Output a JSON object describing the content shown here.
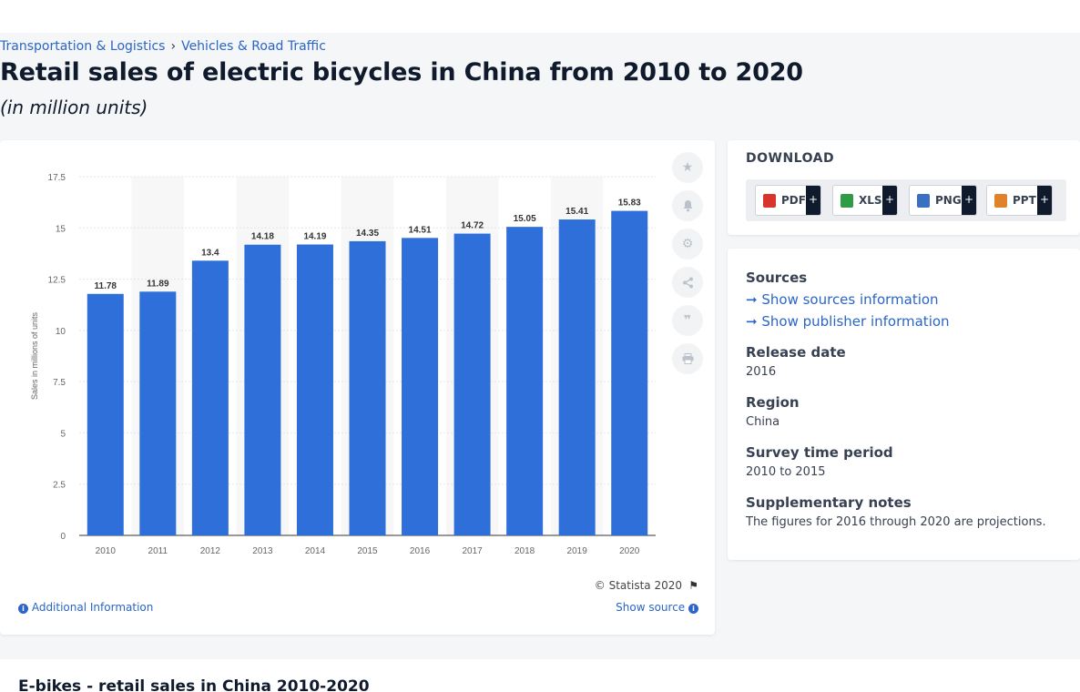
{
  "breadcrumb": [
    "Transportation & Logistics",
    "Vehicles & Road Traffic"
  ],
  "breadcrumb_sep": "›",
  "title": "Retail sales of electric bicycles in China from 2010 to 2020",
  "subtitle": "(in million units)",
  "chart_data": {
    "type": "bar",
    "categories": [
      "2010",
      "2011",
      "2012",
      "2013",
      "2014",
      "2015",
      "2016",
      "2017",
      "2018",
      "2019",
      "2020"
    ],
    "values": [
      11.78,
      11.89,
      13.4,
      14.18,
      14.19,
      14.35,
      14.51,
      14.72,
      15.05,
      15.41,
      15.83
    ],
    "value_labels": [
      "11.78",
      "11.89",
      "13.4",
      "14.18",
      "14.19",
      "14.35",
      "14.51",
      "14.72",
      "15.05",
      "15.41",
      "15.83"
    ],
    "ylabel": "Sales in millions of units",
    "xlabel": "",
    "ylim": [
      0,
      17.5
    ],
    "yticks": [
      "0",
      "2.5",
      "5",
      "7.5",
      "10",
      "12.5",
      "15",
      "17.5"
    ],
    "grid": true,
    "bar_color": "#2f6fd9"
  },
  "chart_footer": {
    "credit": "© Statista 2020",
    "additional_info": "Additional Information",
    "show_source": "Show source"
  },
  "download": {
    "title": "DOWNLOAD",
    "buttons": [
      {
        "label": "PDF",
        "icon": "pdf-file-icon",
        "color": "#d9342b"
      },
      {
        "label": "XLS",
        "icon": "xls-file-icon",
        "color": "#2e9b45"
      },
      {
        "label": "PNG",
        "icon": "png-file-icon",
        "color": "#3a6fc4"
      },
      {
        "label": "PPT",
        "icon": "ppt-file-icon",
        "color": "#e0822a"
      }
    ],
    "plus": "+"
  },
  "meta": {
    "sources_h": "Sources",
    "sources_link": "Show sources information",
    "publisher_link": "Show publisher information",
    "release_h": "Release date",
    "release_v": "2016",
    "region_h": "Region",
    "region_v": "China",
    "survey_h": "Survey time period",
    "survey_v": "2010 to 2015",
    "notes_h": "Supplementary notes",
    "notes_v": "The figures for 2016 through 2020 are projections."
  },
  "tools": [
    "star-icon",
    "bell-icon",
    "gear-icon",
    "share-icon",
    "quote-icon",
    "print-icon"
  ],
  "bottom_title": "E-bikes - retail sales in China 2010-2020"
}
